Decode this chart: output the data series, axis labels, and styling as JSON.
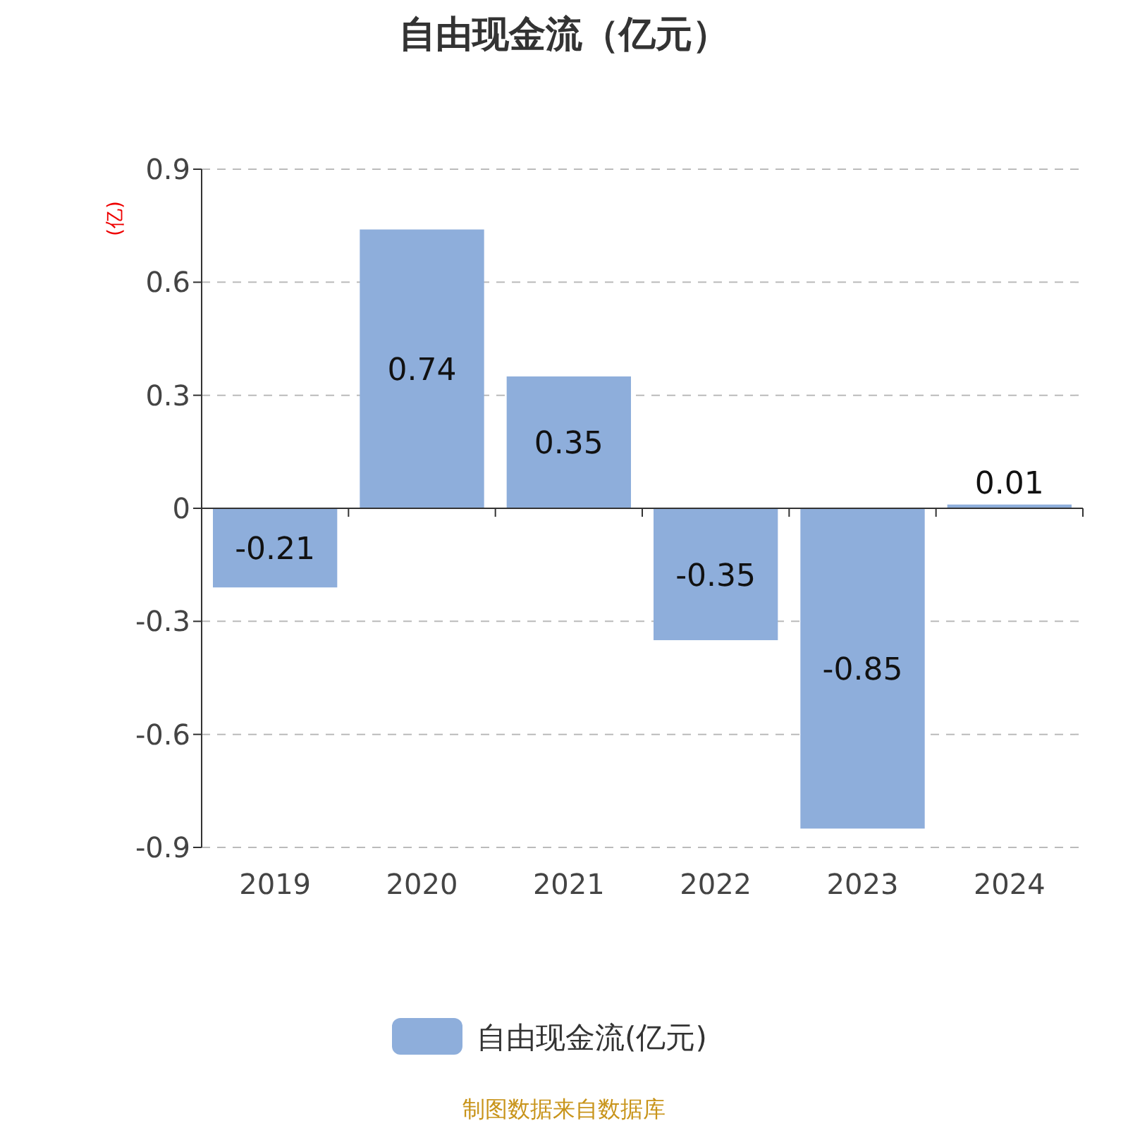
{
  "chart_data": {
    "type": "bar",
    "title": "自由现金流（亿元）",
    "ylabel": "(亿)",
    "categories": [
      "2019",
      "2020",
      "2021",
      "2022",
      "2023",
      "2024"
    ],
    "series": [
      {
        "name": "自由现金流(亿元)",
        "color": "#8eaedb",
        "values": [
          -0.21,
          0.74,
          0.35,
          -0.35,
          -0.85,
          0.01
        ]
      }
    ],
    "ylim": [
      -0.9,
      0.9
    ],
    "yticks": [
      -0.9,
      -0.6,
      -0.3,
      0,
      0.3,
      0.6,
      0.9
    ],
    "grid": "y",
    "legend": "bottom",
    "data_labels": true,
    "annotations": [
      "制图数据来自数据库"
    ]
  }
}
